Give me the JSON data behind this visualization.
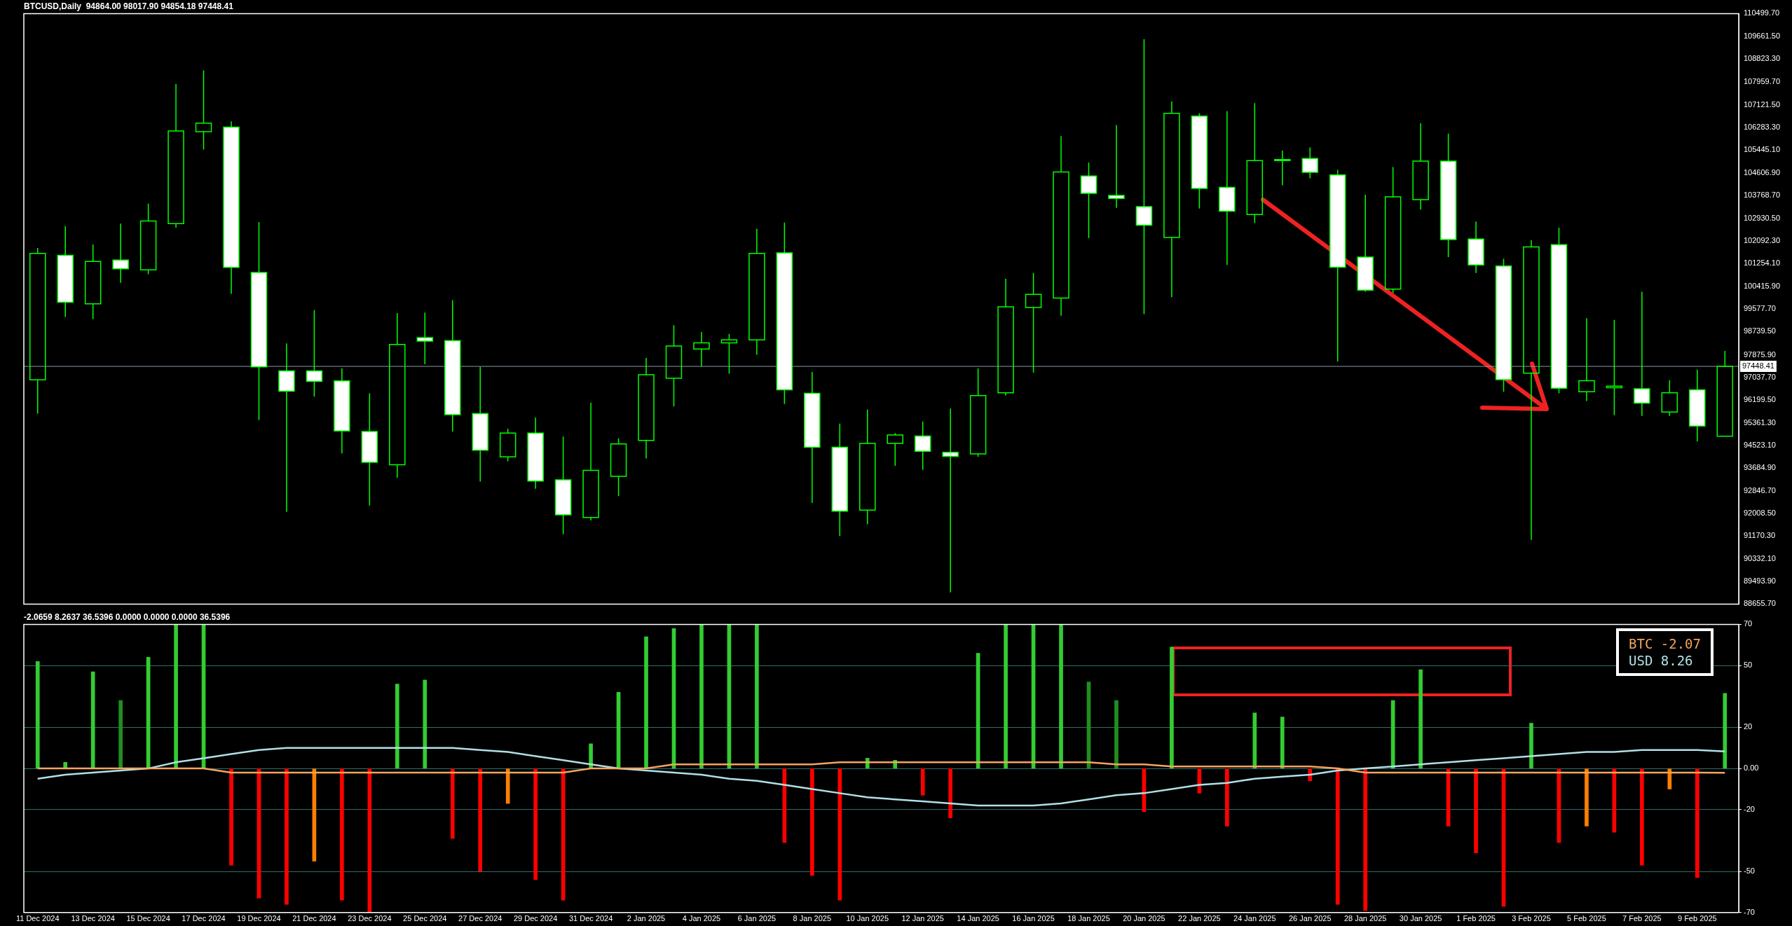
{
  "chart_data": [
    {
      "type": "candlestick",
      "title": "BTCUSD,Daily  94864.00 98017.90 94854.18 97448.41",
      "color": "#00ff00",
      "categories": [
        null,
        null,
        null,
        null,
        null,
        null,
        null,
        null,
        null,
        null,
        null,
        null,
        null,
        null,
        null,
        null,
        null,
        null,
        null,
        null,
        null,
        null,
        null,
        null,
        null,
        null,
        null,
        null,
        null,
        null,
        null,
        null,
        null,
        null,
        null,
        null,
        null,
        null,
        null,
        null,
        null,
        null,
        null,
        null,
        null,
        null,
        null,
        null,
        null,
        null,
        null,
        null,
        null,
        null,
        null,
        null,
        null,
        null,
        null,
        null,
        null,
        null
      ],
      "ohlc": [
        [
          96950,
          101830,
          95700,
          101630
        ],
        [
          101560,
          102640,
          99280,
          99820
        ],
        [
          99760,
          101960,
          99190,
          101330
        ],
        [
          101380,
          102730,
          100540,
          101060
        ],
        [
          101020,
          103470,
          100860,
          102830
        ],
        [
          102730,
          107900,
          102580,
          106160
        ],
        [
          106130,
          108400,
          105470,
          106450
        ],
        [
          106300,
          106510,
          100130,
          101110
        ],
        [
          100920,
          102790,
          95470,
          97430
        ],
        [
          97280,
          98300,
          92070,
          96530
        ],
        [
          97280,
          99530,
          96330,
          96890
        ],
        [
          96910,
          97370,
          94230,
          95060
        ],
        [
          95040,
          96450,
          92300,
          93900
        ],
        [
          93810,
          99420,
          93330,
          98260
        ],
        [
          98510,
          99440,
          97530,
          98380
        ],
        [
          98400,
          99900,
          95040,
          95660
        ],
        [
          95700,
          97430,
          93190,
          94350
        ],
        [
          94100,
          95140,
          93940,
          94980
        ],
        [
          94980,
          95560,
          92920,
          93210
        ],
        [
          93250,
          94850,
          91240,
          91960
        ],
        [
          91860,
          96100,
          91750,
          93600
        ],
        [
          93380,
          94790,
          92650,
          94580
        ],
        [
          94710,
          97760,
          94040,
          97140
        ],
        [
          97010,
          98970,
          95970,
          98200
        ],
        [
          98090,
          98720,
          97450,
          98320
        ],
        [
          98320,
          98650,
          97180,
          98430
        ],
        [
          98430,
          102540,
          97880,
          101630
        ],
        [
          101650,
          102770,
          96060,
          96580
        ],
        [
          96450,
          97240,
          92400,
          94460
        ],
        [
          94460,
          95330,
          91170,
          92090
        ],
        [
          92130,
          95850,
          91610,
          94600
        ],
        [
          94600,
          94980,
          93770,
          94910
        ],
        [
          94870,
          95410,
          93620,
          94310
        ],
        [
          94270,
          95890,
          89090,
          94120
        ],
        [
          94210,
          97370,
          94100,
          96370
        ],
        [
          96470,
          100690,
          96370,
          99650
        ],
        [
          99630,
          100900,
          97220,
          100110
        ],
        [
          99980,
          105970,
          99320,
          104640
        ],
        [
          104490,
          104990,
          102190,
          103850
        ],
        [
          103770,
          106380,
          103310,
          103660
        ],
        [
          103360,
          109550,
          99380,
          102670
        ],
        [
          102220,
          107250,
          100010,
          106810
        ],
        [
          106710,
          106810,
          103290,
          104030
        ],
        [
          104070,
          106890,
          101200,
          103190
        ],
        [
          103070,
          107190,
          102750,
          105060
        ],
        [
          105060,
          105430,
          104150,
          105100
        ],
        [
          105140,
          105550,
          104410,
          104630
        ],
        [
          104530,
          104720,
          97630,
          101120
        ],
        [
          101490,
          103800,
          100210,
          100270
        ],
        [
          100310,
          104820,
          100170,
          103720
        ],
        [
          103620,
          106440,
          103250,
          105040
        ],
        [
          105040,
          106060,
          101490,
          102140
        ],
        [
          102160,
          102810,
          100900,
          101200
        ],
        [
          101160,
          101430,
          96510,
          96960
        ],
        [
          97200,
          102120,
          91030,
          101870
        ],
        [
          101950,
          102580,
          96450,
          96640
        ],
        [
          96510,
          99230,
          96170,
          96920
        ],
        [
          96660,
          99170,
          95640,
          96720
        ],
        [
          96620,
          100210,
          95620,
          96090
        ],
        [
          95760,
          96940,
          95620,
          96470
        ],
        [
          96580,
          97330,
          94670,
          95240
        ],
        [
          94864.0,
          98017.9,
          94854.18,
          97448.41
        ]
      ],
      "colors": [
        "#00ff00",
        "#ffffff",
        "#00ff00",
        "#ffffff",
        "#00ff00",
        "#00ff00",
        "#00ff00",
        "#ffffff",
        "#ffffff",
        "#ffffff",
        "#ffffff",
        "#ffffff",
        "#ffffff",
        "#00ff00",
        "#ffffff",
        "#ffffff",
        "#ffffff",
        "#00ff00",
        "#ffffff",
        "#ffffff",
        "#00ff00",
        "#00ff00",
        "#00ff00",
        "#00ff00",
        "#00ff00",
        "#00ff00",
        "#00ff00",
        "#ffffff",
        "#ffffff",
        "#ffffff",
        "#00ff00",
        "#00ff00",
        "#ffffff",
        "#ffffff",
        "#00ff00",
        "#00ff00",
        "#00ff00",
        "#00ff00",
        "#ffffff",
        "#ffffff",
        "#ffffff",
        "#00ff00",
        "#ffffff",
        "#ffffff",
        "#00ff00",
        "#00ff00",
        "#ffffff",
        "#ffffff",
        "#ffffff",
        "#00ff00",
        "#00ff00",
        "#ffffff",
        "#ffffff",
        "#ffffff",
        "#00ff00",
        "#ffffff",
        "#00ff00",
        "#00ff00",
        "#ffffff",
        "#00ff00",
        "#ffffff",
        "#00ff00"
      ],
      "ylim": [
        88655.7,
        110499.7
      ],
      "yticks": [
        {
          "value": 110499.7,
          "label": "110499.70"
        },
        {
          "value": 109661.5,
          "label": "109661.50"
        },
        {
          "value": 108823.3,
          "label": "108823.30"
        },
        {
          "value": 107959.7,
          "label": "107959.70"
        },
        {
          "value": 107121.5,
          "label": "107121.50"
        },
        {
          "value": 106283.3,
          "label": "106283.30"
        },
        {
          "value": 105445.1,
          "label": "105445.10"
        },
        {
          "value": 104606.9,
          "label": "104606.90"
        },
        {
          "value": 103768.7,
          "label": "103768.70"
        },
        {
          "value": 102930.5,
          "label": "102930.50"
        },
        {
          "value": 102092.3,
          "label": "102092.30"
        },
        {
          "value": 101254.1,
          "label": "101254.10"
        },
        {
          "value": 100415.9,
          "label": "100415.90"
        },
        {
          "value": 99577.7,
          "label": "99577.70"
        },
        {
          "value": 98739.5,
          "label": "98739.50"
        },
        {
          "value": 97875.9,
          "label": "97875.90"
        },
        {
          "value": 97037.7,
          "label": "97037.70"
        },
        {
          "value": 96199.5,
          "label": "96199.50"
        },
        {
          "value": 95361.3,
          "label": "95361.30"
        },
        {
          "value": 94523.1,
          "label": "94523.10"
        },
        {
          "value": 93684.9,
          "label": "93684.90"
        },
        {
          "value": 92846.7,
          "label": "92846.70"
        },
        {
          "value": 92008.5,
          "label": "92008.50"
        },
        {
          "value": 91170.3,
          "label": "91170.30"
        },
        {
          "value": 90332.1,
          "label": "90332.10"
        },
        {
          "value": 89493.9,
          "label": "89493.90"
        },
        {
          "value": 88655.7,
          "label": "88655.70"
        }
      ],
      "ref_lines": [
        {
          "axis": "y",
          "value": 97448.41,
          "label": "97448.41",
          "color": "#8898a8"
        }
      ],
      "tick_labels": "y"
    },
    {
      "type": "bar",
      "title": "-2.0659 8.2637 36.5396 0.0000 0.0000 0.0000 36.5396",
      "categories": [
        "11 Dec 2024",
        null,
        "13 Dec 2024",
        null,
        "15 Dec 2024",
        null,
        "17 Dec 2024",
        null,
        "19 Dec 2024",
        null,
        "21 Dec 2024",
        null,
        "23 Dec 2024",
        null,
        "25 Dec 2024",
        null,
        "27 Dec 2024",
        null,
        "29 Dec 2024",
        null,
        "31 Dec 2024",
        null,
        "2 Jan 2025",
        null,
        "4 Jan 2025",
        null,
        "6 Jan 2025",
        null,
        "8 Jan 2025",
        null,
        "10 Jan 2025",
        null,
        "12 Jan 2025",
        null,
        "14 Jan 2025",
        null,
        "16 Jan 2025",
        null,
        "18 Jan 2025",
        null,
        "20 Jan 2025",
        null,
        "22 Jan 2025",
        null,
        "24 Jan 2025",
        null,
        "26 Jan 2025",
        null,
        "28 Jan 2025",
        null,
        "30 Jan 2025",
        null,
        "1 Feb 2025",
        null,
        "3 Feb 2025",
        null,
        "5 Feb 2025",
        null,
        "7 Feb 2025",
        null,
        "9 Feb 2025",
        null
      ],
      "series": [
        {
          "type": "bar",
          "values": [
            52,
            3,
            47,
            33,
            54,
            70,
            70,
            -47,
            -63,
            -66,
            -45,
            -64,
            -70,
            41,
            43,
            -34,
            -50,
            -17,
            -54,
            -64,
            12,
            37,
            64,
            68,
            70,
            70,
            70,
            -36,
            -52,
            -64,
            5,
            4,
            -13,
            -24,
            56,
            70,
            70,
            70,
            42,
            33,
            -21,
            59,
            -12,
            -28,
            27,
            25,
            -6,
            -66,
            -69,
            33,
            48,
            -28,
            -41,
            -67,
            22,
            -36,
            -28,
            -31,
            -47,
            -10,
            -53,
            36.5
          ],
          "colors": [
            "#32cd32",
            "#32cd32",
            "#32cd32",
            "#1f8f1f",
            "#32cd32",
            "#32cd32",
            "#32cd32",
            "#ff0000",
            "#ff0000",
            "#ff0000",
            "#ff7f00",
            "#ff0000",
            "#ff0000",
            "#32cd32",
            "#32cd32",
            "#ff0000",
            "#ff0000",
            "#ff7f00",
            "#ff0000",
            "#ff0000",
            "#32cd32",
            "#32cd32",
            "#32cd32",
            "#32cd32",
            "#32cd32",
            "#32cd32",
            "#32cd32",
            "#ff0000",
            "#ff0000",
            "#ff0000",
            "#32cd32",
            "#32cd32",
            "#ff0000",
            "#ff0000",
            "#32cd32",
            "#32cd32",
            "#32cd32",
            "#32cd32",
            "#1f8f1f",
            "#1f8f1f",
            "#ff0000",
            "#32cd32",
            "#ff0000",
            "#ff0000",
            "#32cd32",
            "#32cd32",
            "#ff0000",
            "#ff0000",
            "#ff0000",
            "#32cd32",
            "#32cd32",
            "#ff0000",
            "#ff0000",
            "#ff0000",
            "#32cd32",
            "#ff0000",
            "#ff7f00",
            "#ff0000",
            "#ff0000",
            "#ff7f00",
            "#ff0000",
            "#32cd32"
          ]
        },
        {
          "type": "line",
          "name": "BTC",
          "color": "#f4a460",
          "values": [
            0,
            0,
            0,
            0,
            0,
            0,
            0,
            -2,
            -2,
            -2,
            -2,
            -2,
            -2,
            -2,
            -2,
            -2,
            -2,
            -2,
            -2,
            -2,
            0,
            0,
            0,
            2,
            2,
            2,
            2,
            2,
            2,
            3,
            3,
            3,
            3,
            3,
            3,
            3,
            3,
            3,
            3,
            2,
            2,
            1,
            1,
            1,
            1,
            1,
            1,
            0,
            -2,
            -2,
            -2,
            -2,
            -2,
            -2,
            -2,
            -2,
            -2,
            -2,
            -2,
            -2,
            -2,
            -2.07
          ]
        },
        {
          "type": "line",
          "name": "USD",
          "color": "#b0e0e6",
          "values": [
            -5,
            -3,
            -2,
            -1,
            0,
            3,
            5,
            7,
            9,
            10,
            10,
            10,
            10,
            10,
            10,
            10,
            9,
            8,
            6,
            4,
            2,
            0,
            -1,
            -2,
            -3,
            -5,
            -6,
            -8,
            -10,
            -12,
            -14,
            -15,
            -16,
            -17,
            -18,
            -18,
            -18,
            -17,
            -15,
            -13,
            -12,
            -10,
            -8,
            -7,
            -5,
            -4,
            -3,
            -1,
            0,
            1,
            2,
            3,
            4,
            5,
            6,
            7,
            8,
            8,
            9,
            9,
            9,
            8.26
          ]
        }
      ],
      "annotations": [
        "-2.07",
        "8.26"
      ],
      "legend": "top right",
      "ylim": [
        -70,
        70
      ],
      "yticks": [
        70,
        50,
        20,
        {
          "value": 0,
          "label": "0.00"
        },
        -20,
        -50,
        -70
      ],
      "grid": "y"
    }
  ]
}
